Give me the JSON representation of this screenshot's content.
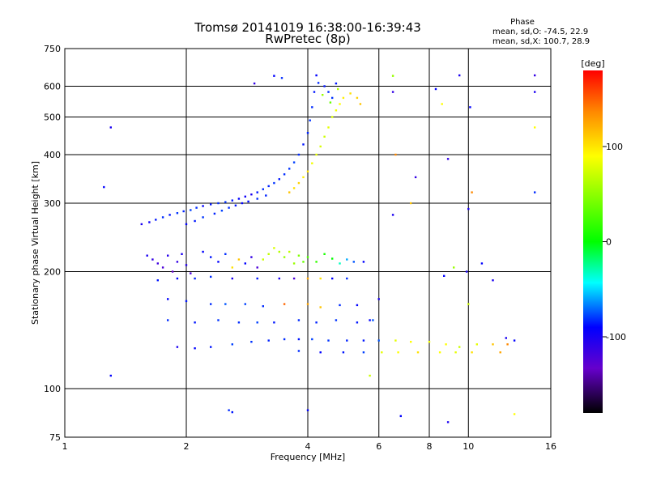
{
  "chart_data": {
    "type": "scatter",
    "title": "Tromsø 20141019 16:38:00-16:39:43",
    "subtitle": "RwPretec (8p)",
    "xlabel": "Frequency [MHz]",
    "ylabel": "Stationary phase Virtual Height [km]",
    "x_scale": "log",
    "y_scale": "log",
    "xlim": [
      1,
      16
    ],
    "ylim": [
      75,
      750
    ],
    "x_ticks": [
      1,
      2,
      4,
      6,
      8,
      10,
      16
    ],
    "y_ticks": [
      75,
      100,
      200,
      300,
      400,
      500,
      600,
      750
    ],
    "grid": true,
    "phase_box": {
      "title": "Phase",
      "line_o": "mean, sd,O: -74.5, 22.9",
      "line_x": "mean, sd,X: 100.7, 28.9"
    },
    "colorbar": {
      "label": "[deg]",
      "range": [
        -180,
        180
      ],
      "ticks": [
        100,
        0,
        -100
      ],
      "colors": [
        "#ff0000",
        "#ff8800",
        "#ffff00",
        "#00ff00",
        "#00ffff",
        "#0088ff",
        "#0000ff",
        "#8800ff",
        "#000000"
      ]
    },
    "points_note": "Each point: [frequency MHz, virtual height km, phase deg]",
    "points": [
      [
        1.55,
        265,
        -110
      ],
      [
        1.62,
        268,
        -105
      ],
      [
        1.68,
        272,
        -95
      ],
      [
        1.75,
        276,
        -90
      ],
      [
        1.82,
        280,
        -95
      ],
      [
        1.9,
        283,
        -88
      ],
      [
        1.97,
        286,
        -92
      ],
      [
        2.05,
        288,
        -85
      ],
      [
        2.12,
        292,
        -90
      ],
      [
        2.2,
        295,
        -100
      ],
      [
        2.3,
        298,
        -95
      ],
      [
        2.4,
        300,
        -90
      ],
      [
        2.5,
        302,
        -88
      ],
      [
        2.6,
        305,
        -95
      ],
      [
        2.7,
        308,
        -100
      ],
      [
        2.8,
        312,
        -105
      ],
      [
        2.9,
        316,
        -110
      ],
      [
        3.0,
        320,
        -95
      ],
      [
        3.1,
        326,
        -90
      ],
      [
        3.2,
        332,
        -92
      ],
      [
        3.3,
        338,
        -88
      ],
      [
        3.4,
        346,
        -95
      ],
      [
        3.5,
        356,
        -90
      ],
      [
        3.6,
        368,
        -88
      ],
      [
        3.7,
        382,
        -85
      ],
      [
        3.8,
        400,
        -90
      ],
      [
        3.9,
        425,
        -95
      ],
      [
        4.0,
        455,
        -92
      ],
      [
        4.05,
        490,
        -88
      ],
      [
        4.1,
        530,
        -90
      ],
      [
        4.15,
        580,
        -95
      ],
      [
        4.2,
        640,
        -100
      ],
      [
        4.25,
        612,
        -90
      ],
      [
        2.0,
        265,
        -100
      ],
      [
        2.1,
        270,
        -95
      ],
      [
        2.2,
        276,
        -88
      ],
      [
        2.35,
        282,
        -92
      ],
      [
        2.45,
        287,
        -85
      ],
      [
        2.55,
        292,
        -90
      ],
      [
        2.65,
        296,
        -95
      ],
      [
        2.75,
        300,
        -100
      ],
      [
        2.85,
        303,
        -98
      ],
      [
        3.0,
        308,
        -90
      ],
      [
        3.15,
        314,
        -92
      ],
      [
        3.6,
        320,
        120
      ],
      [
        3.7,
        328,
        110
      ],
      [
        3.8,
        338,
        115
      ],
      [
        3.9,
        350,
        105
      ],
      [
        4.0,
        362,
        110
      ],
      [
        4.1,
        380,
        95
      ],
      [
        4.2,
        400,
        90
      ],
      [
        4.3,
        420,
        85
      ],
      [
        4.4,
        445,
        80
      ],
      [
        4.5,
        470,
        90
      ],
      [
        4.6,
        500,
        85
      ],
      [
        4.7,
        520,
        95
      ],
      [
        4.8,
        540,
        100
      ],
      [
        4.9,
        560,
        105
      ],
      [
        5.1,
        575,
        110
      ],
      [
        5.3,
        560,
        115
      ],
      [
        5.4,
        540,
        120
      ],
      [
        4.4,
        600,
        -95
      ],
      [
        4.5,
        580,
        -90
      ],
      [
        4.6,
        560,
        -88
      ],
      [
        4.7,
        610,
        -95
      ],
      [
        4.35,
        570,
        60
      ],
      [
        4.55,
        545,
        40
      ],
      [
        4.75,
        590,
        70
      ],
      [
        1.6,
        220,
        -110
      ],
      [
        1.65,
        215,
        -120
      ],
      [
        1.7,
        210,
        -125
      ],
      [
        1.75,
        205,
        -130
      ],
      [
        1.8,
        220,
        -115
      ],
      [
        1.85,
        200,
        -140
      ],
      [
        1.9,
        212,
        -120
      ],
      [
        1.95,
        222,
        -110
      ],
      [
        2.0,
        208,
        -115
      ],
      [
        2.05,
        198,
        -130
      ],
      [
        2.2,
        225,
        -100
      ],
      [
        2.3,
        218,
        -95
      ],
      [
        2.4,
        212,
        -100
      ],
      [
        2.5,
        222,
        -90
      ],
      [
        2.6,
        205,
        110
      ],
      [
        2.7,
        215,
        120
      ],
      [
        2.8,
        210,
        -100
      ],
      [
        2.9,
        218,
        -120
      ],
      [
        3.0,
        205,
        -130
      ],
      [
        3.1,
        215,
        80
      ],
      [
        3.2,
        222,
        75
      ],
      [
        3.3,
        230,
        85
      ],
      [
        3.4,
        225,
        70
      ],
      [
        3.5,
        218,
        60
      ],
      [
        3.6,
        225,
        75
      ],
      [
        3.7,
        210,
        60
      ],
      [
        3.8,
        220,
        50
      ],
      [
        3.9,
        212,
        40
      ],
      [
        4.0,
        218,
        30
      ],
      [
        4.2,
        212,
        20
      ],
      [
        4.4,
        222,
        10
      ],
      [
        4.6,
        216,
        0
      ],
      [
        4.8,
        210,
        -30
      ],
      [
        5.0,
        215,
        -60
      ],
      [
        5.2,
        212,
        -80
      ],
      [
        5.5,
        212,
        -100
      ],
      [
        1.7,
        190,
        -95
      ],
      [
        1.9,
        192,
        -100
      ],
      [
        2.1,
        192,
        -92
      ],
      [
        2.3,
        194,
        -90
      ],
      [
        2.6,
        192,
        -110
      ],
      [
        3.0,
        192,
        -95
      ],
      [
        3.4,
        192,
        -110
      ],
      [
        3.7,
        192,
        -130
      ],
      [
        4.0,
        192,
        130
      ],
      [
        4.3,
        192,
        110
      ],
      [
        4.6,
        192,
        -100
      ],
      [
        5.0,
        192,
        -90
      ],
      [
        1.8,
        170,
        -100
      ],
      [
        2.0,
        168,
        -95
      ],
      [
        2.3,
        165,
        -90
      ],
      [
        2.5,
        165,
        -80
      ],
      [
        2.8,
        165,
        -85
      ],
      [
        3.1,
        163,
        -90
      ],
      [
        3.5,
        165,
        150
      ],
      [
        4.0,
        165,
        130
      ],
      [
        4.3,
        162,
        120
      ],
      [
        4.8,
        164,
        -90
      ],
      [
        5.3,
        164,
        -100
      ],
      [
        6.0,
        170,
        -110
      ],
      [
        1.8,
        150,
        -90
      ],
      [
        2.1,
        148,
        -95
      ],
      [
        2.4,
        150,
        -88
      ],
      [
        2.7,
        148,
        -90
      ],
      [
        3.0,
        148,
        -85
      ],
      [
        3.3,
        148,
        -95
      ],
      [
        3.8,
        150,
        -90
      ],
      [
        4.2,
        148,
        -92
      ],
      [
        4.7,
        150,
        -88
      ],
      [
        5.3,
        148,
        -95
      ],
      [
        5.8,
        150,
        -80
      ],
      [
        1.9,
        128,
        -110
      ],
      [
        2.1,
        127,
        -100
      ],
      [
        2.3,
        128,
        -95
      ],
      [
        2.6,
        130,
        -85
      ],
      [
        2.9,
        132,
        -88
      ],
      [
        3.2,
        133,
        -92
      ],
      [
        3.5,
        134,
        -90
      ],
      [
        3.8,
        134,
        -95
      ],
      [
        4.1,
        134,
        -85
      ],
      [
        4.5,
        133,
        -88
      ],
      [
        5.0,
        133,
        -92
      ],
      [
        5.5,
        133,
        -95
      ],
      [
        6.0,
        133,
        -80
      ],
      [
        6.6,
        133,
        90
      ],
      [
        7.2,
        132,
        100
      ],
      [
        8.0,
        132,
        95
      ],
      [
        8.8,
        130,
        100
      ],
      [
        9.5,
        128,
        80
      ],
      [
        10.5,
        130,
        90
      ],
      [
        11.5,
        130,
        120
      ],
      [
        12.5,
        130,
        140
      ],
      [
        13.0,
        133,
        -100
      ],
      [
        3.8,
        125,
        -90
      ],
      [
        4.3,
        124,
        -100
      ],
      [
        4.9,
        124,
        -95
      ],
      [
        5.5,
        124,
        -85
      ],
      [
        6.1,
        124,
        90
      ],
      [
        6.7,
        124,
        100
      ],
      [
        7.5,
        124,
        110
      ],
      [
        8.5,
        124,
        100
      ],
      [
        9.3,
        124,
        90
      ],
      [
        10.2,
        124,
        110
      ],
      [
        12.0,
        124,
        130
      ],
      [
        1.25,
        330,
        -100
      ],
      [
        1.3,
        470,
        -110
      ],
      [
        1.3,
        108,
        -100
      ],
      [
        2.55,
        88,
        -90
      ],
      [
        2.6,
        87,
        -95
      ],
      [
        3.3,
        638,
        -100
      ],
      [
        3.45,
        630,
        -90
      ],
      [
        2.95,
        610,
        -120
      ],
      [
        4.0,
        88,
        -100
      ],
      [
        6.5,
        638,
        60
      ],
      [
        6.5,
        580,
        -120
      ],
      [
        6.6,
        400,
        140
      ],
      [
        6.5,
        280,
        -110
      ],
      [
        7.4,
        350,
        -120
      ],
      [
        7.2,
        300,
        120
      ],
      [
        8.3,
        590,
        -100
      ],
      [
        8.9,
        390,
        -120
      ],
      [
        9.5,
        640,
        -110
      ],
      [
        10.1,
        530,
        -100
      ],
      [
        10.2,
        320,
        140
      ],
      [
        10.0,
        290,
        -110
      ],
      [
        8.6,
        540,
        100
      ],
      [
        9.2,
        205,
        60
      ],
      [
        10.8,
        210,
        -100
      ],
      [
        11.5,
        190,
        -110
      ],
      [
        9.9,
        200,
        -110
      ],
      [
        8.7,
        195,
        -100
      ],
      [
        10.0,
        165,
        80
      ],
      [
        12.4,
        135,
        -110
      ],
      [
        14.6,
        640,
        -120
      ],
      [
        14.6,
        580,
        -110
      ],
      [
        14.6,
        470,
        100
      ],
      [
        14.6,
        320,
        -90
      ],
      [
        6.8,
        85,
        -100
      ],
      [
        8.9,
        82,
        -110
      ],
      [
        13.0,
        86,
        100
      ],
      [
        5.7,
        150,
        -100
      ],
      [
        5.7,
        108,
        80
      ]
    ]
  }
}
